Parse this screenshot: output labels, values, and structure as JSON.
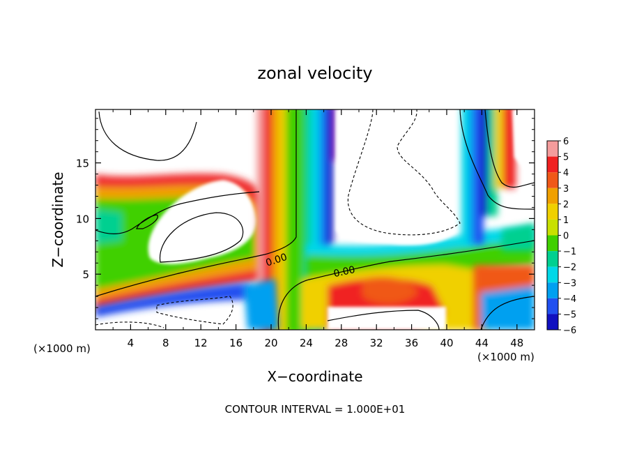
{
  "chart_data": {
    "type": "heatmap",
    "title": "zonal velocity",
    "xlabel": "X−coordinate",
    "ylabel": "Z−coordinate",
    "x_unit_left": "(×1000 m)",
    "x_unit_right": "(×1000 m)",
    "xlim": [
      0,
      50
    ],
    "ylim": [
      0,
      19.8
    ],
    "x_ticks": [
      4,
      8,
      12,
      16,
      20,
      24,
      28,
      32,
      36,
      40,
      44,
      48
    ],
    "y_ticks": [
      5,
      10,
      15
    ],
    "colorbar": {
      "levels": [
        6,
        5,
        4,
        3,
        2,
        1,
        0,
        -1,
        -2,
        -3,
        -4,
        -5,
        -6
      ],
      "colors": [
        "#f49c9c",
        "#f02020",
        "#f05818",
        "#f0a000",
        "#f0d000",
        "#c8e000",
        "#40d000",
        "#00d090",
        "#00d8e8",
        "#00a0f0",
        "#2050f0",
        "#1010c0",
        "#7010b0"
      ],
      "labels": [
        "6",
        "5",
        "4",
        "3",
        "2",
        "1",
        "0",
        "−1",
        "−2",
        "−3",
        "−4",
        "−5",
        "−6"
      ]
    },
    "contour_labels": [
      "0.00",
      "0.00"
    ],
    "footer": "CONTOUR INTERVAL = 1.000E+01"
  }
}
